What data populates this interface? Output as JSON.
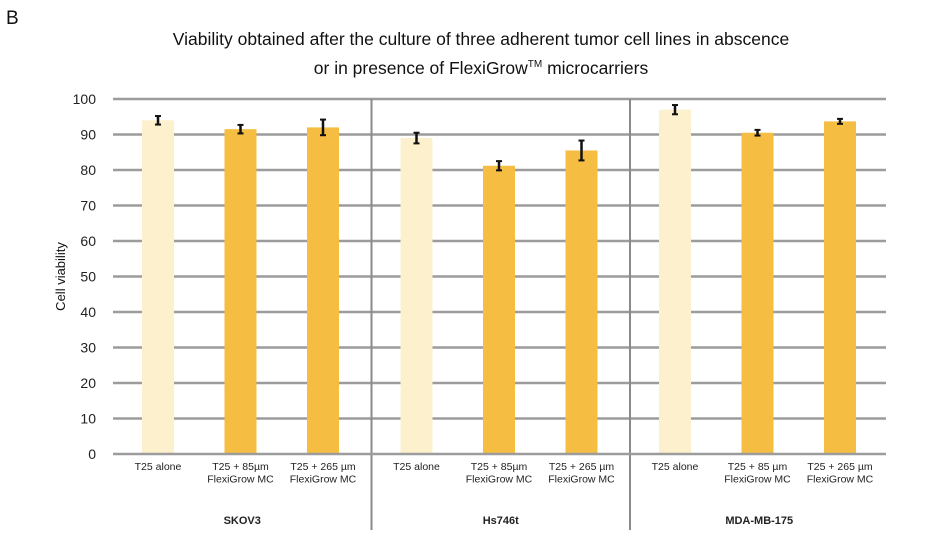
{
  "chart_data": {
    "type": "bar",
    "panel_label": "B",
    "title": {
      "line1": "Viability obtained after the culture of three adherent tumor cell lines in abscence",
      "line2_prefix": "or in presence of FlexiGrow",
      "line2_superscript": "TM",
      "line2_suffix": " microcarriers"
    },
    "ylabel": "Cell viability",
    "xlabel": "",
    "ylim": [
      0,
      100
    ],
    "yticks": [
      0,
      10,
      20,
      30,
      40,
      50,
      60,
      70,
      80,
      90,
      100
    ],
    "grid": true,
    "groups": [
      {
        "name": "SKOV3",
        "bars": [
          {
            "label": [
              "T25 alone"
            ],
            "value": 94,
            "error": 1.2,
            "kind": "alone"
          },
          {
            "label": [
              "T25 + 85µm",
              "FlexiGrow MC"
            ],
            "value": 91.5,
            "error": 1.2,
            "kind": "mc"
          },
          {
            "label": [
              "T25 + 265 µm",
              "FlexiGrow MC"
            ],
            "value": 92,
            "error": 2.2,
            "kind": "mc"
          }
        ]
      },
      {
        "name": "Hs746t",
        "bars": [
          {
            "label": [
              "T25 alone"
            ],
            "value": 89,
            "error": 1.5,
            "kind": "alone"
          },
          {
            "label": [
              "T25 + 85µm",
              "FlexiGrow MC"
            ],
            "value": 81.2,
            "error": 1.3,
            "kind": "mc"
          },
          {
            "label": [
              "T25 + 265 µm",
              "FlexiGrow MC"
            ],
            "value": 85.5,
            "error": 2.8,
            "kind": "mc"
          }
        ]
      },
      {
        "name": "MDA-MB-175",
        "bars": [
          {
            "label": [
              "T25 alone"
            ],
            "value": 97,
            "error": 1.3,
            "kind": "alone"
          },
          {
            "label": [
              "T25 + 85 µm",
              "FlexiGrow MC"
            ],
            "value": 90.5,
            "error": 0.8,
            "kind": "mc"
          },
          {
            "label": [
              "T25 + 265 µm",
              "FlexiGrow MC"
            ],
            "value": 93.7,
            "error": 0.7,
            "kind": "mc"
          }
        ]
      }
    ],
    "colors": {
      "alone": "#fdf0cc",
      "mc": "#f5bd42",
      "grid": "#9c9c9c",
      "separator": "#8a8a8a",
      "error_bar": "#111111"
    }
  }
}
